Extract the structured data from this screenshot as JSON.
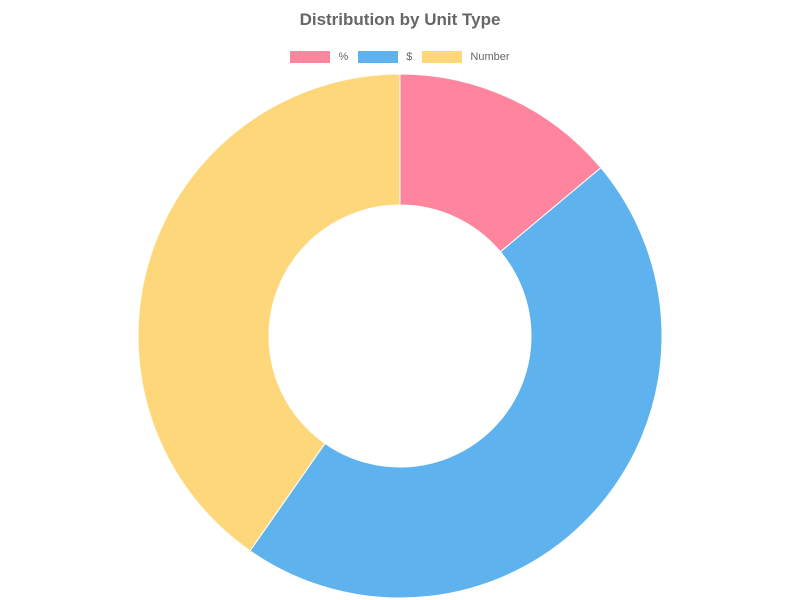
{
  "chart_data": {
    "type": "pie",
    "variant": "doughnut",
    "title": "Distribution by Unit Type",
    "categories": [
      "%",
      "$",
      "Number"
    ],
    "values": [
      13.9,
      45.8,
      40.3
    ],
    "colors": [
      "#FF859E",
      "#5EB3EE",
      "#FED77A"
    ],
    "legend_position": "top"
  }
}
